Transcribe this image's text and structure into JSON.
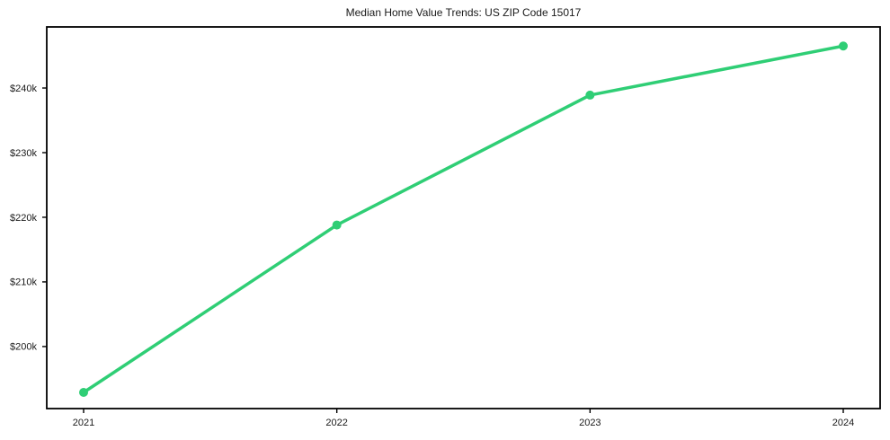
{
  "figure": {
    "background": "#ffffff",
    "title": "Median Home Value Trends: US ZIP Code 15017"
  },
  "chart_data": {
    "type": "line",
    "title": "Median Home Value Trends: US ZIP Code 15017",
    "categories": [
      "2021",
      "2022",
      "2023",
      "2024"
    ],
    "values": [
      192900,
      218800,
      238900,
      246500
    ],
    "xlabel": "",
    "ylabel": "",
    "ylim": [
      190400,
      249450
    ],
    "yticks": [
      {
        "value": 200000,
        "label": "$200k"
      },
      {
        "value": 210000,
        "label": "$210k"
      },
      {
        "value": 220000,
        "label": "$220k"
      },
      {
        "value": 230000,
        "label": "$230k"
      },
      {
        "value": 240000,
        "label": "$240k"
      }
    ],
    "grid": false,
    "legend": false,
    "line_color": "#2fce75",
    "marker": "circle",
    "axis_color": "#000000",
    "text_color": "#1a1a1a"
  }
}
